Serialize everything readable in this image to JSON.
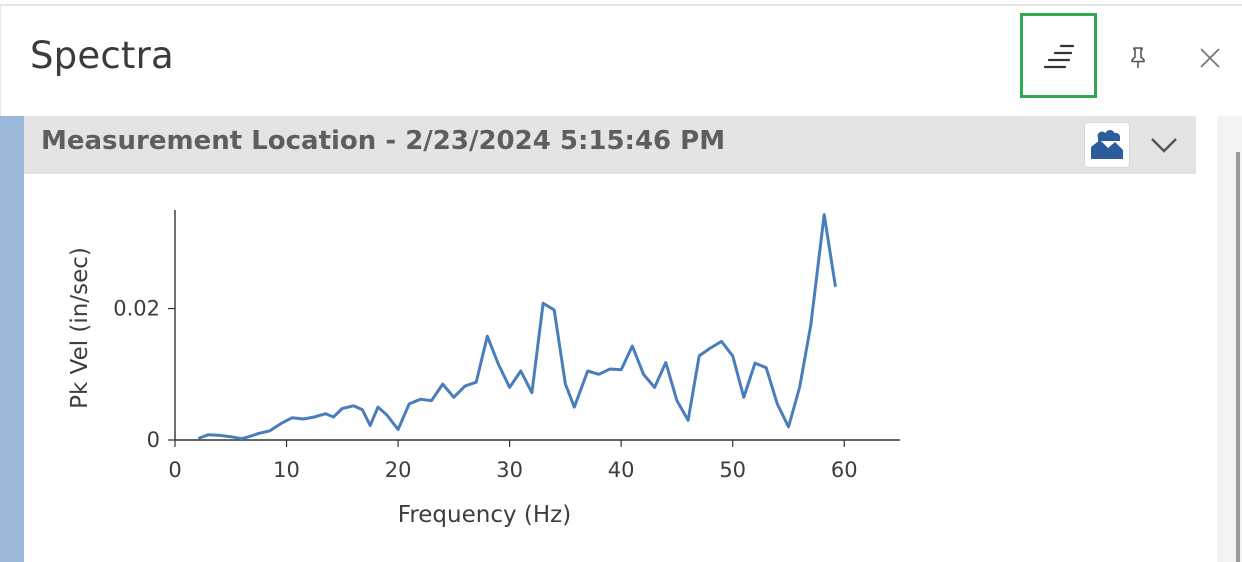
{
  "panel": {
    "title": "Spectra",
    "icons": {
      "menu": "menu-lines-icon",
      "pin": "pin-icon",
      "close": "close-icon"
    }
  },
  "section": {
    "title": "Measurement Location - 2/23/2024 5:15:46 PM",
    "icons": {
      "image": "image-icon",
      "expand": "chevron-down-icon"
    },
    "accent_color": "#9ab8d9"
  },
  "chart_data": {
    "type": "line",
    "xlabel": "Frequency (Hz)",
    "ylabel": "Pk Vel (in/sec)",
    "xlim": [
      0,
      65
    ],
    "ylim": [
      0,
      0.035
    ],
    "x_ticks": [
      0,
      10,
      20,
      30,
      40,
      50,
      60
    ],
    "x_tick_labels": [
      "0",
      "10",
      "20",
      "30",
      "40",
      "50",
      "60"
    ],
    "y_ticks": [
      0,
      0.02
    ],
    "y_tick_labels": [
      "0",
      "0.02"
    ],
    "grid": false,
    "line_color": "#4a7ebb",
    "series": [
      {
        "x": [
          2.2,
          3.0,
          4.0,
          5.0,
          6.0,
          6.8,
          7.5,
          8.5,
          9.5,
          10.5,
          11.5,
          12.5,
          13.5,
          14.2,
          15.0,
          16.0,
          16.8,
          17.5,
          18.2,
          19.0,
          20.0,
          21.0,
          22.0,
          23.0,
          24.0,
          25.0,
          26.0,
          27.0,
          28.0,
          29.0,
          30.0,
          31.0,
          32.0,
          33.0,
          34.0,
          35.0,
          35.8,
          37.0,
          38.0,
          39.0,
          40.0,
          41.0,
          42.0,
          43.0,
          44.0,
          45.0,
          46.0,
          47.0,
          48.0,
          49.0,
          50.0,
          51.0,
          52.0,
          53.0,
          54.0,
          55.0,
          56.0,
          57.0,
          58.2,
          59.2
        ],
        "y": [
          0.0003,
          0.0008,
          0.0007,
          0.0005,
          0.0002,
          0.0006,
          0.001,
          0.0014,
          0.0025,
          0.0034,
          0.0032,
          0.0035,
          0.004,
          0.0035,
          0.0048,
          0.0052,
          0.0046,
          0.0022,
          0.005,
          0.0038,
          0.0016,
          0.0055,
          0.0062,
          0.006,
          0.0085,
          0.0065,
          0.0082,
          0.0088,
          0.0158,
          0.0115,
          0.008,
          0.0105,
          0.0072,
          0.0208,
          0.0198,
          0.0085,
          0.005,
          0.0105,
          0.01,
          0.0108,
          0.0107,
          0.0143,
          0.01,
          0.008,
          0.0118,
          0.006,
          0.003,
          0.0128,
          0.014,
          0.015,
          0.0128,
          0.0065,
          0.0117,
          0.011,
          0.0055,
          0.002,
          0.008,
          0.0175,
          0.0343,
          0.0235
        ]
      }
    ]
  }
}
